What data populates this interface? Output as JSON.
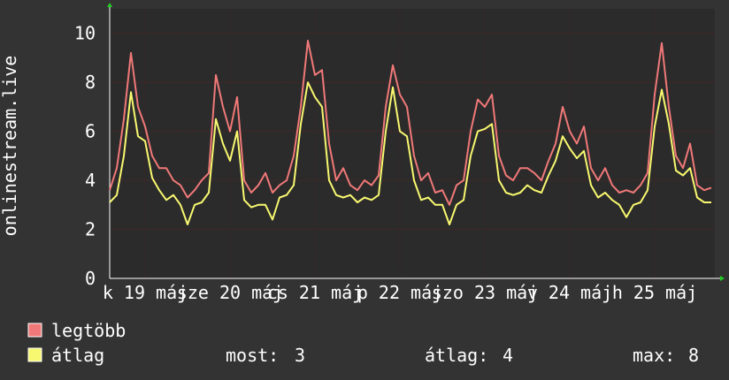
{
  "chart_data": {
    "type": "line",
    "y_label": "onlinestream.live",
    "ylim": [
      0,
      11
    ],
    "yticks": [
      0,
      2,
      4,
      6,
      8,
      10
    ],
    "xlim": [
      0,
      85
    ],
    "xticks": [
      {
        "value": 5,
        "label": "k 19 máj"
      },
      {
        "value": 17,
        "label": "sze 20 máj"
      },
      {
        "value": 29,
        "label": "cs 21 máj"
      },
      {
        "value": 41,
        "label": "p 22 máj"
      },
      {
        "value": 53,
        "label": "szo 23 máj"
      },
      {
        "value": 65,
        "label": "v 24 máj"
      },
      {
        "value": 77,
        "label": "h 25 máj"
      }
    ],
    "grid": true,
    "series": [
      {
        "name": "legtöbb",
        "color": "#f07878",
        "values": [
          3.6,
          4.5,
          6.5,
          9.2,
          7.0,
          6.2,
          5.0,
          4.5,
          4.5,
          4.0,
          3.8,
          3.3,
          3.6,
          4.0,
          4.3,
          8.3,
          7.0,
          6.0,
          7.4,
          4.0,
          3.5,
          3.8,
          4.3,
          3.5,
          3.8,
          4.0,
          5.0,
          7.0,
          9.7,
          8.3,
          8.5,
          5.5,
          4.0,
          4.5,
          3.8,
          3.6,
          4.0,
          3.8,
          4.2,
          7.0,
          8.7,
          7.5,
          7.0,
          5.0,
          4.0,
          4.3,
          3.5,
          3.6,
          3.0,
          3.8,
          4.0,
          6.0,
          7.3,
          7.0,
          7.5,
          5.0,
          4.2,
          4.0,
          4.5,
          4.5,
          4.3,
          4.0,
          4.8,
          5.5,
          7.0,
          6.0,
          5.5,
          6.2,
          4.5,
          4.0,
          4.5,
          3.8,
          3.5,
          3.6,
          3.5,
          3.8,
          4.3,
          7.5,
          9.6,
          7.0,
          5.0,
          4.5,
          5.5,
          3.8,
          3.6,
          3.7
        ]
      },
      {
        "name": "átlag",
        "color": "#f8f870",
        "values": [
          3.1,
          3.4,
          5.0,
          7.6,
          5.8,
          5.6,
          4.1,
          3.6,
          3.2,
          3.4,
          3.0,
          2.2,
          3.0,
          3.1,
          3.5,
          6.5,
          5.5,
          4.8,
          6.0,
          3.2,
          2.9,
          3.0,
          3.0,
          2.4,
          3.3,
          3.4,
          3.8,
          6.3,
          8.0,
          7.4,
          7.0,
          4.0,
          3.4,
          3.3,
          3.4,
          3.1,
          3.3,
          3.2,
          3.4,
          6.0,
          7.8,
          6.0,
          5.8,
          4.0,
          3.2,
          3.3,
          3.0,
          3.0,
          2.2,
          3.0,
          3.2,
          5.0,
          6.0,
          6.1,
          6.3,
          4.0,
          3.5,
          3.4,
          3.5,
          3.8,
          3.6,
          3.5,
          4.2,
          4.8,
          5.8,
          5.3,
          4.9,
          5.2,
          3.8,
          3.3,
          3.5,
          3.2,
          3.0,
          2.5,
          3.0,
          3.1,
          3.6,
          6.2,
          7.7,
          6.3,
          4.4,
          4.2,
          4.5,
          3.3,
          3.1,
          3.1
        ]
      }
    ],
    "stats": [
      {
        "label": "most:",
        "value": 3
      },
      {
        "label": "átlag:",
        "value": 4
      },
      {
        "label": "max:",
        "value": 8
      }
    ]
  }
}
